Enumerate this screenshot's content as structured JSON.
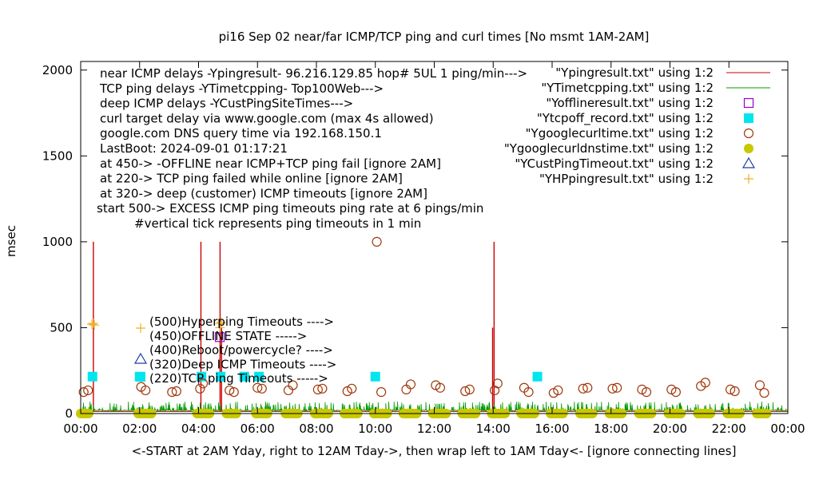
{
  "chart_data": {
    "type": "scatter",
    "title": "pi16 Sep 02  near/far ICMP/TCP ping and curl times [No msmt 1AM-2AM]",
    "xlabel": "<-START at 2AM Yday, right to 12AM Tday->, then wrap left to 1AM Tday<- [ignore connecting lines]",
    "ylabel": "msec",
    "xlim": [
      0,
      24
    ],
    "ylim": [
      0,
      2050
    ],
    "x_unit": "hours",
    "x_ticks": [
      "00:00",
      "02:00",
      "04:00",
      "06:00",
      "08:00",
      "10:00",
      "12:00",
      "14:00",
      "16:00",
      "18:00",
      "20:00",
      "22:00",
      "00:00"
    ],
    "y_ticks": [
      "0",
      "500",
      "1000",
      "1500",
      "2000"
    ],
    "notes": [
      "near ICMP delays -Ypingresult- 96.216.129.85 hop# 5UL 1 ping/min--->",
      "TCP ping delays -YTimetcpping- Top100Web--->",
      "deep ICMP delays -YCustPingSiteTimes--->",
      "curl target delay via www.google.com (max 4s allowed)",
      "google.com DNS query time via 192.168.150.1",
      "LastBoot: 2024-09-01 01:17:21",
      "at 450-> -OFFLINE near ICMP+TCP ping fail [ignore 2AM]",
      "at 220-> TCP ping failed while online [ignore 2AM]",
      "at 320-> deep (customer) ICMP timeouts [ignore 2AM]",
      "start 500-> EXCESS ICMP ping timeouts ping rate at 6 pings/min",
      "#vertical tick represents ping timeouts in 1 min"
    ],
    "key_notes": [
      "(500)Hyperping Timeouts ---->",
      "(450)OFFLINE STATE ----->",
      "(400)Reboot/powercycle? ---->",
      "(320)Deep ICMP Timeouts ---->",
      "(220)TCP ping Timeouts ----->"
    ],
    "legend_position": "top-right",
    "series": [
      {
        "name": "\"Ypingresult.txt\" using 1:2",
        "style": "line",
        "color": "#cc0000",
        "base": 12,
        "spikes": [
          [
            0.43,
            1000
          ],
          [
            4.08,
            1000
          ],
          [
            4.73,
            1000
          ],
          [
            4.78,
            500
          ],
          [
            14.03,
            1000
          ],
          [
            13.98,
            500
          ]
        ]
      },
      {
        "name": "\"YTimetcpping.txt\" using 1:2",
        "style": "noise",
        "color": "#009900",
        "base": 15,
        "max": 70
      },
      {
        "name": "\"Yofflineresult.txt\" using 1:2",
        "style": "square-open",
        "color": "#9400d3",
        "points": [
          [
            4.72,
            445
          ]
        ]
      },
      {
        "name": "\"Ytcpoff_record.txt\" using 1:2",
        "style": "square-filled",
        "color": "#00e5ee",
        "points": [
          [
            0.4,
            215
          ],
          [
            2.0,
            215
          ],
          [
            4.1,
            215
          ],
          [
            4.75,
            215
          ],
          [
            5.55,
            215
          ],
          [
            6.05,
            215
          ],
          [
            10.0,
            215
          ],
          [
            15.5,
            215
          ]
        ]
      },
      {
        "name": "\"Ygooglecurltime.txt\" using 1:2",
        "style": "circle-open",
        "color": "#a0380a",
        "points": [
          [
            0.1,
            125
          ],
          [
            0.25,
            135
          ],
          [
            2.05,
            155
          ],
          [
            2.2,
            135
          ],
          [
            3.1,
            125
          ],
          [
            3.25,
            130
          ],
          [
            4.05,
            145
          ],
          [
            4.15,
            175
          ],
          [
            5.05,
            135
          ],
          [
            5.2,
            125
          ],
          [
            6.0,
            150
          ],
          [
            6.15,
            145
          ],
          [
            7.05,
            135
          ],
          [
            7.2,
            165
          ],
          [
            8.05,
            140
          ],
          [
            8.2,
            145
          ],
          [
            9.05,
            130
          ],
          [
            9.2,
            145
          ],
          [
            10.05,
            1000
          ],
          [
            10.2,
            125
          ],
          [
            11.05,
            140
          ],
          [
            11.2,
            170
          ],
          [
            12.05,
            165
          ],
          [
            12.2,
            150
          ],
          [
            13.05,
            130
          ],
          [
            13.2,
            140
          ],
          [
            14.05,
            135
          ],
          [
            14.15,
            175
          ],
          [
            15.05,
            150
          ],
          [
            15.2,
            125
          ],
          [
            16.05,
            120
          ],
          [
            16.2,
            135
          ],
          [
            17.05,
            145
          ],
          [
            17.2,
            150
          ],
          [
            18.05,
            145
          ],
          [
            18.2,
            150
          ],
          [
            19.05,
            140
          ],
          [
            19.2,
            125
          ],
          [
            20.05,
            140
          ],
          [
            20.2,
            125
          ],
          [
            21.05,
            160
          ],
          [
            21.2,
            180
          ],
          [
            22.05,
            140
          ],
          [
            22.2,
            130
          ],
          [
            23.05,
            165
          ],
          [
            23.2,
            120
          ]
        ]
      },
      {
        "name": "\"Ygooglecurldnstime.txt\" using 1:2",
        "style": "circle-filled",
        "color": "#c8c800",
        "bands": [
          [
            0.0,
            0.3
          ],
          [
            1.95,
            2.4
          ],
          [
            3.95,
            4.4
          ],
          [
            4.95,
            5.3
          ],
          [
            5.95,
            6.35
          ],
          [
            6.95,
            7.4
          ],
          [
            7.95,
            8.4
          ],
          [
            8.95,
            9.4
          ],
          [
            9.95,
            10.4
          ],
          [
            10.95,
            11.4
          ],
          [
            11.95,
            12.4
          ],
          [
            12.95,
            13.4
          ],
          [
            13.95,
            14.4
          ],
          [
            14.95,
            15.4
          ],
          [
            15.95,
            16.4
          ],
          [
            16.95,
            17.4
          ],
          [
            17.95,
            18.4
          ],
          [
            18.95,
            19.4
          ],
          [
            19.95,
            20.4
          ],
          [
            20.95,
            21.4
          ],
          [
            21.95,
            22.4
          ],
          [
            22.95,
            23.3
          ]
        ]
      },
      {
        "name": "\"YCustPingTimeout.txt\" using 1:2",
        "style": "triangle-open",
        "color": "#1e3ca8",
        "points": []
      },
      {
        "name": "\"YHPpingresult.txt\" using 1:2",
        "style": "plus",
        "color": "#f0b030",
        "points": [
          [
            0.38,
            520
          ],
          [
            0.42,
            525
          ],
          [
            0.46,
            515
          ],
          [
            4.68,
            525
          ],
          [
            4.73,
            500
          ],
          [
            4.78,
            530
          ]
        ]
      }
    ]
  }
}
